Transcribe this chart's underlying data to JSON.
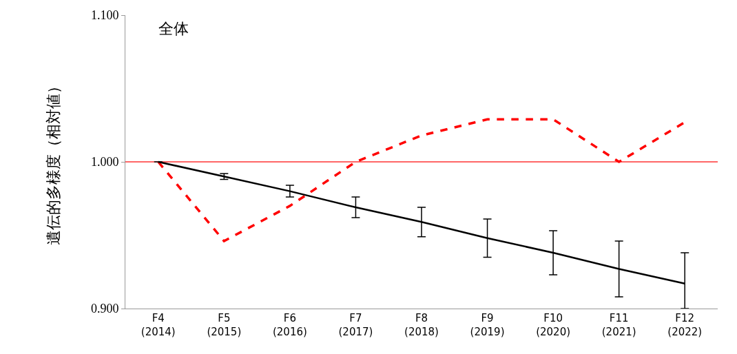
{
  "chart_data": {
    "type": "line",
    "title": "全体",
    "ylabel": "遺伝的多様度（相対値）",
    "categories": [
      "F4\n(2014)",
      "F5\n(2015)",
      "F6\n(2016)",
      "F7\n(2017)",
      "F8\n(2018)",
      "F9\n(2019)",
      "F10\n(2020)",
      "F11\n(2021)",
      "F12\n(2022)"
    ],
    "series": [
      {
        "color": "#ff0000",
        "line_style": "dashed",
        "values": [
          1.0,
          0.946,
          0.97,
          1.0,
          1.018,
          1.029,
          1.029,
          1.0,
          1.027
        ]
      },
      {
        "color": "#000000",
        "line_style": "solid",
        "values": [
          1.0,
          0.99,
          0.98,
          0.969,
          0.959,
          0.948,
          0.938,
          0.927,
          0.917
        ],
        "errors": [
          null,
          0.002,
          0.004,
          0.007,
          0.01,
          0.013,
          0.015,
          0.019,
          [
            0.9,
            0.938
          ]
        ]
      }
    ],
    "ylim": [
      0.9,
      1.1
    ],
    "yticks": [
      {
        "value": 0.9,
        "label": "0.900"
      },
      {
        "value": 1.0,
        "label": "1.000"
      },
      {
        "value": 1.1,
        "label": "1.100"
      }
    ],
    "ref_lines": [
      {
        "axis": "y",
        "value": 1.0,
        "color": "#ff3333"
      }
    ],
    "grid": false,
    "marker": "none"
  }
}
